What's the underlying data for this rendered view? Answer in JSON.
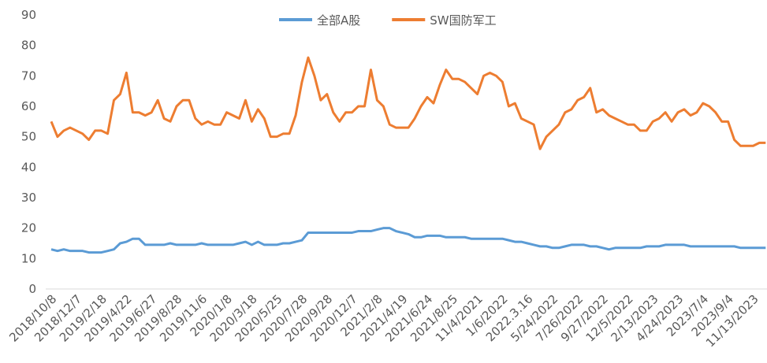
{
  "chart_data": {
    "type": "line",
    "categories": [
      "2018/10/8",
      null,
      null,
      null,
      "2018/12/7",
      null,
      null,
      null,
      "2019/2/18",
      null,
      null,
      null,
      "2019/4/22",
      null,
      null,
      null,
      "2019/6/27",
      null,
      null,
      null,
      "2019/8/28",
      null,
      null,
      null,
      "2019/11/6",
      null,
      null,
      null,
      "2020/1/8",
      null,
      null,
      null,
      "2020/3/18",
      null,
      null,
      null,
      "2020/5/25",
      null,
      null,
      null,
      "2020/7/28",
      null,
      null,
      null,
      "2020/9/28",
      null,
      null,
      null,
      "2020/12/7",
      null,
      null,
      null,
      "2021/2/8",
      null,
      null,
      null,
      "2021/4/19",
      null,
      null,
      null,
      "2021/6/24",
      null,
      null,
      null,
      "2021/8/25",
      null,
      null,
      null,
      "11/4/2021",
      null,
      null,
      null,
      "1/6/2022",
      null,
      null,
      null,
      "2022.3.16",
      null,
      null,
      null,
      "5/24/2022",
      null,
      null,
      null,
      "7/26/2022",
      null,
      null,
      null,
      "9/27/2022",
      null,
      null,
      null,
      "12/5/2022",
      null,
      null,
      null,
      "2/13/2023",
      null,
      null,
      null,
      "4/24/2023",
      null,
      null,
      null,
      "2023/7/4",
      null,
      null,
      null,
      "2023/9/4",
      null,
      null,
      null,
      "11/13/2023",
      null,
      null
    ],
    "series": [
      {
        "name": "全部A股",
        "color": "#5b9bd5",
        "values": [
          13,
          12.5,
          13,
          12.5,
          12.5,
          12.5,
          12,
          12,
          12,
          12.5,
          13,
          15,
          15.5,
          16.5,
          16.5,
          14.5,
          14.5,
          14.5,
          14.5,
          15,
          14.5,
          14.5,
          14.5,
          14.5,
          15,
          14.5,
          14.5,
          14.5,
          14.5,
          14.5,
          15,
          15.5,
          14.5,
          15.5,
          14.5,
          14.5,
          14.5,
          15,
          15,
          15.5,
          16,
          18.5,
          18.5,
          18.5,
          18.5,
          18.5,
          18.5,
          18.5,
          18.5,
          19,
          19,
          19,
          19.5,
          20,
          20,
          19,
          18.5,
          18,
          17,
          17,
          17.5,
          17.5,
          17.5,
          17,
          17,
          17,
          17,
          16.5,
          16.5,
          16.5,
          16.5,
          16.5,
          16.5,
          16,
          15.5,
          15.5,
          15,
          14.5,
          14,
          14,
          13.5,
          13.5,
          14,
          14.5,
          14.5,
          14.5,
          14,
          14,
          13.5,
          13,
          13.5,
          13.5,
          13.5,
          13.5,
          13.5,
          14,
          14,
          14,
          14.5,
          14.5,
          14.5,
          14.5,
          14,
          14,
          14,
          14,
          14,
          14,
          14,
          14,
          13.5,
          13.5,
          13.5,
          13.5,
          13.5
        ]
      },
      {
        "name": "SW国防军工",
        "color": "#ed7d31",
        "values": [
          55,
          50,
          52,
          53,
          52,
          51,
          49,
          52,
          52,
          51,
          62,
          64,
          71,
          58,
          58,
          57,
          58,
          62,
          56,
          55,
          60,
          62,
          62,
          56,
          54,
          55,
          54,
          54,
          58,
          57,
          56,
          62,
          55,
          59,
          56,
          50,
          50,
          51,
          51,
          57,
          68,
          76,
          70,
          62,
          64,
          58,
          55,
          58,
          58,
          60,
          60,
          72,
          62,
          60,
          54,
          53,
          53,
          53,
          56,
          60,
          63,
          61,
          67,
          72,
          69,
          69,
          68,
          66,
          64,
          70,
          71,
          70,
          68,
          60,
          61,
          56,
          55,
          54,
          46,
          50,
          52,
          54,
          58,
          59,
          62,
          63,
          66,
          58,
          59,
          57,
          56,
          55,
          54,
          54,
          52,
          52,
          55,
          56,
          58,
          55,
          58,
          59,
          57,
          58,
          61,
          60,
          58,
          55,
          55,
          49,
          47,
          47,
          47,
          48,
          48
        ]
      }
    ],
    "ylim": [
      0,
      90
    ],
    "yticks": [
      0,
      10,
      20,
      30,
      40,
      50,
      60,
      70,
      80,
      90
    ],
    "legend": "top"
  }
}
